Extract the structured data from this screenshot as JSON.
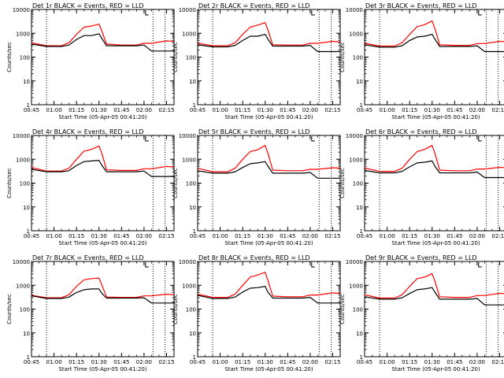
{
  "figure": {
    "x_tick_labels": [
      "00:45",
      "01:00",
      "01:15",
      "01:30",
      "01:45",
      "02:00",
      "02:15"
    ],
    "y_tick_labels": [
      "1",
      "10",
      "100",
      "1000",
      "10000"
    ],
    "xlabel": "Start Time (05-Apr-05 00:41:20)",
    "ylabel": "Counts/sec"
  },
  "colors": {
    "events": "#000000",
    "lld": "#ff0000",
    "axes": "#000000"
  },
  "chart_data": [
    {
      "type": "line",
      "title": "Det 1r BLACK = Events, RED = LLD",
      "xlabel": "Start Time (05-Apr-05 00:41:20)",
      "ylabel": "Counts/sec",
      "yscale": "log",
      "ylim": [
        1,
        10000
      ],
      "xlim": [
        "00:45",
        "02:20"
      ],
      "x": [
        "00:45",
        "00:55",
        "01:05",
        "01:10",
        "01:15",
        "01:20",
        "01:25",
        "01:30",
        "01:32",
        "01:35",
        "01:45",
        "01:55",
        "02:00",
        "02:05",
        "02:15",
        "02:20"
      ],
      "series": [
        {
          "name": "Events",
          "color": "black",
          "values": [
            350,
            280,
            280,
            320,
            550,
            800,
            800,
            950,
            600,
            300,
            300,
            300,
            320,
            180,
            180,
            180
          ]
        },
        {
          "name": "LLD",
          "color": "red",
          "values": [
            400,
            300,
            300,
            400,
            900,
            1800,
            2000,
            2400,
            1200,
            350,
            320,
            320,
            380,
            380,
            480,
            450
          ]
        }
      ]
    },
    {
      "type": "line",
      "title": "Det 2r BLACK = Events, RED = LLD",
      "xlabel": "Start Time (05-Apr-05 00:41:20)",
      "ylabel": "Counts/sec",
      "yscale": "log",
      "ylim": [
        1,
        10000
      ],
      "xlim": [
        "00:45",
        "02:20"
      ],
      "x": [
        "00:45",
        "00:55",
        "01:05",
        "01:10",
        "01:15",
        "01:20",
        "01:25",
        "01:30",
        "01:32",
        "01:35",
        "01:45",
        "01:55",
        "02:00",
        "02:05",
        "02:15",
        "02:20"
      ],
      "series": [
        {
          "name": "Events",
          "color": "black",
          "values": [
            330,
            270,
            270,
            310,
            500,
            750,
            750,
            900,
            550,
            290,
            290,
            290,
            310,
            170,
            170,
            170
          ]
        },
        {
          "name": "LLD",
          "color": "red",
          "values": [
            380,
            300,
            300,
            400,
            900,
            1800,
            2200,
            2800,
            1300,
            330,
            320,
            320,
            380,
            380,
            460,
            430
          ]
        }
      ]
    },
    {
      "type": "line",
      "title": "Det 3r BLACK = Events, RED = LLD",
      "xlabel": "Start Time (05-Apr-05 00:41:20)",
      "ylabel": "Counts/sec",
      "yscale": "log",
      "ylim": [
        1,
        10000
      ],
      "xlim": [
        "00:45",
        "02:20"
      ],
      "x": [
        "00:45",
        "00:55",
        "01:05",
        "01:10",
        "01:15",
        "01:20",
        "01:25",
        "01:30",
        "01:32",
        "01:35",
        "01:45",
        "01:55",
        "02:00",
        "02:05",
        "02:15",
        "02:20"
      ],
      "series": [
        {
          "name": "Events",
          "color": "black",
          "values": [
            330,
            260,
            260,
            300,
            500,
            700,
            750,
            900,
            550,
            280,
            280,
            280,
            300,
            170,
            170,
            170
          ]
        },
        {
          "name": "LLD",
          "color": "red",
          "values": [
            380,
            290,
            290,
            400,
            900,
            1900,
            2300,
            3300,
            1500,
            330,
            310,
            310,
            370,
            370,
            460,
            440
          ]
        }
      ]
    },
    {
      "type": "line",
      "title": "Det 4r BLACK = Events, RED = LLD",
      "xlabel": "Start Time (05-Apr-05 00:41:20)",
      "ylabel": "Counts/sec",
      "yscale": "log",
      "ylim": [
        1,
        10000
      ],
      "xlim": [
        "00:45",
        "02:20"
      ],
      "x": [
        "00:45",
        "00:55",
        "01:05",
        "01:10",
        "01:15",
        "01:20",
        "01:25",
        "01:30",
        "01:32",
        "01:35",
        "01:45",
        "01:55",
        "02:00",
        "02:05",
        "02:15",
        "02:20"
      ],
      "series": [
        {
          "name": "Events",
          "color": "black",
          "values": [
            380,
            300,
            300,
            330,
            550,
            800,
            850,
            900,
            550,
            300,
            300,
            300,
            320,
            190,
            190,
            190
          ]
        },
        {
          "name": "LLD",
          "color": "red",
          "values": [
            450,
            320,
            320,
            420,
            1000,
            2200,
            2600,
            3600,
            1700,
            360,
            340,
            340,
            400,
            400,
            500,
            470
          ]
        }
      ]
    },
    {
      "type": "line",
      "title": "Det 5r BLACK = Events, RED = LLD",
      "xlabel": "Start Time (05-Apr-05 00:41:20)",
      "ylabel": "Counts/sec",
      "yscale": "log",
      "ylim": [
        1,
        10000
      ],
      "xlim": [
        "00:45",
        "02:20"
      ],
      "x": [
        "00:45",
        "00:55",
        "01:05",
        "01:10",
        "01:15",
        "01:20",
        "01:25",
        "01:30",
        "01:32",
        "01:35",
        "01:45",
        "01:55",
        "02:00",
        "02:05",
        "02:15",
        "02:20"
      ],
      "series": [
        {
          "name": "Events",
          "color": "black",
          "values": [
            330,
            260,
            260,
            300,
            450,
            650,
            700,
            800,
            500,
            260,
            260,
            260,
            280,
            160,
            160,
            160
          ]
        },
        {
          "name": "LLD",
          "color": "red",
          "values": [
            420,
            300,
            300,
            420,
            1000,
            2100,
            2500,
            3800,
            1700,
            350,
            330,
            330,
            380,
            380,
            440,
            420
          ]
        }
      ]
    },
    {
      "type": "line",
      "title": "Det 6r BLACK = Events, RED = LLD",
      "xlabel": "Start Time (05-Apr-05 00:41:20)",
      "ylabel": "Counts/sec",
      "yscale": "log",
      "ylim": [
        1,
        10000
      ],
      "xlim": [
        "00:45",
        "02:20"
      ],
      "x": [
        "00:45",
        "00:55",
        "01:05",
        "01:10",
        "01:15",
        "01:20",
        "01:25",
        "01:30",
        "01:32",
        "01:35",
        "01:45",
        "01:55",
        "02:00",
        "02:05",
        "02:15",
        "02:20"
      ],
      "series": [
        {
          "name": "Events",
          "color": "black",
          "values": [
            340,
            270,
            270,
            310,
            480,
            700,
            750,
            850,
            500,
            270,
            270,
            270,
            290,
            170,
            170,
            170
          ]
        },
        {
          "name": "LLD",
          "color": "red",
          "values": [
            430,
            310,
            310,
            420,
            1000,
            2100,
            2600,
            3800,
            1700,
            350,
            330,
            330,
            390,
            390,
            460,
            440
          ]
        }
      ]
    },
    {
      "type": "line",
      "title": "Det 7r BLACK = Events, RED = LLD",
      "xlabel": "Start Time (05-Apr-05 00:41:20)",
      "ylabel": "Counts/sec",
      "yscale": "log",
      "ylim": [
        1,
        10000
      ],
      "xlim": [
        "00:45",
        "02:20"
      ],
      "x": [
        "00:45",
        "00:55",
        "01:05",
        "01:10",
        "01:15",
        "01:20",
        "01:25",
        "01:30",
        "01:32",
        "01:35",
        "01:45",
        "01:55",
        "02:00",
        "02:05",
        "02:15",
        "02:20"
      ],
      "series": [
        {
          "name": "Events",
          "color": "black",
          "values": [
            360,
            280,
            280,
            320,
            500,
            650,
            700,
            700,
            450,
            290,
            290,
            290,
            300,
            180,
            180,
            180
          ]
        },
        {
          "name": "LLD",
          "color": "red",
          "values": [
            380,
            300,
            300,
            400,
            900,
            1700,
            1900,
            2000,
            1000,
            320,
            310,
            310,
            360,
            360,
            420,
            400
          ]
        }
      ]
    },
    {
      "type": "line",
      "title": "Det 8r BLACK = Events, RED = LLD",
      "xlabel": "Start Time (05-Apr-05 00:41:20)",
      "ylabel": "Counts/sec",
      "yscale": "log",
      "ylim": [
        1,
        10000
      ],
      "xlim": [
        "00:45",
        "02:20"
      ],
      "x": [
        "00:45",
        "00:55",
        "01:05",
        "01:10",
        "01:15",
        "01:20",
        "01:25",
        "01:30",
        "01:32",
        "01:35",
        "01:45",
        "01:55",
        "02:00",
        "02:05",
        "02:15",
        "02:20"
      ],
      "series": [
        {
          "name": "Events",
          "color": "black",
          "values": [
            380,
            280,
            280,
            320,
            520,
            750,
            800,
            900,
            500,
            290,
            290,
            290,
            310,
            180,
            180,
            180
          ]
        },
        {
          "name": "LLD",
          "color": "red",
          "values": [
            420,
            310,
            310,
            420,
            1000,
            2200,
            2700,
            3500,
            1500,
            350,
            330,
            330,
            390,
            390,
            480,
            450
          ]
        }
      ]
    },
    {
      "type": "line",
      "title": "Det 9r BLACK = Events, RED = LLD",
      "xlabel": "Start Time (05-Apr-05 00:41:20)",
      "ylabel": "Counts/sec",
      "yscale": "log",
      "ylim": [
        1,
        10000
      ],
      "xlim": [
        "00:45",
        "02:20"
      ],
      "x": [
        "00:45",
        "00:55",
        "01:05",
        "01:10",
        "01:15",
        "01:20",
        "01:25",
        "01:30",
        "01:32",
        "01:35",
        "01:45",
        "01:55",
        "02:00",
        "02:05",
        "02:15",
        "02:20"
      ],
      "series": [
        {
          "name": "Events",
          "color": "black",
          "values": [
            330,
            260,
            260,
            300,
            450,
            650,
            700,
            800,
            500,
            260,
            260,
            260,
            280,
            150,
            150,
            150
          ]
        },
        {
          "name": "LLD",
          "color": "red",
          "values": [
            400,
            290,
            290,
            400,
            900,
            1900,
            2200,
            3100,
            1400,
            330,
            310,
            310,
            370,
            370,
            460,
            440
          ]
        }
      ]
    }
  ]
}
